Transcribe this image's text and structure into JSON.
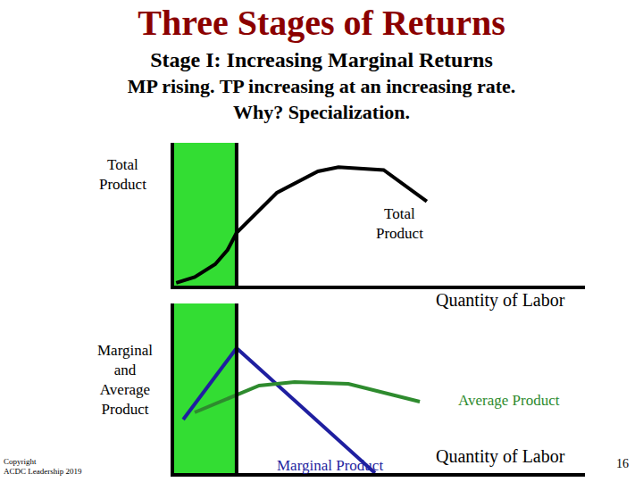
{
  "slide": {
    "title": "Three Stages of Returns",
    "subtitle": [
      "Stage I: Increasing Marginal Returns",
      "MP rising. TP increasing at an increasing rate.",
      "Why? Specialization."
    ],
    "copyright": [
      "Copyright",
      "ACDC Leadership 2019"
    ],
    "page": "16"
  },
  "chart_data": [
    {
      "type": "line",
      "ylabel": "Total Product",
      "xlabel": "Quantity of Labor",
      "xlim": [
        0,
        10
      ],
      "ylim": [
        0,
        100
      ],
      "xticks": [],
      "yticks": [],
      "tick_labels": false,
      "stage": {
        "range": [
          0,
          1.52
        ],
        "color": "#33dd33"
      },
      "series": [
        {
          "name": "Total Product",
          "color": "#000000",
          "x": [
            0.05,
            0.5,
            1.0,
            1.3,
            1.52,
            2.5,
            3.5,
            4.0,
            5.1,
            6.15
          ],
          "values": [
            2,
            6,
            15,
            25,
            37,
            65,
            80,
            83,
            81,
            59
          ]
        }
      ]
    },
    {
      "type": "line",
      "ylabel": "Marginal and Average Product",
      "xlabel": "Quantity of Labor",
      "xlim": [
        0,
        10
      ],
      "ylim": [
        0,
        100
      ],
      "xticks": [],
      "yticks": [],
      "tick_labels": false,
      "stage": {
        "range": [
          0,
          1.52
        ],
        "color": "#33dd33"
      },
      "series": [
        {
          "name": "Marginal Product",
          "color": "#1f1fa0",
          "x": [
            0.22,
            1.52,
            4.89
          ],
          "values": [
            31.6,
            73.7,
            0
          ]
        },
        {
          "name": "Average Product",
          "color": "#2e8b2e",
          "x": [
            0.5,
            2.07,
            2.93,
            4.24,
            5.98
          ],
          "values": [
            35.8,
            51.6,
            53.7,
            52.6,
            42.1
          ]
        }
      ]
    }
  ]
}
